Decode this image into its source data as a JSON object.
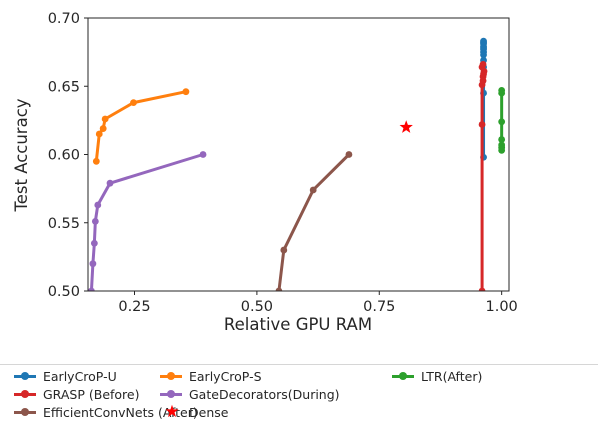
{
  "chart_data": {
    "type": "line",
    "title": "",
    "xlabel": "Relative GPU RAM",
    "ylabel": "Test Accuracy",
    "xlim": [
      0.155,
      1.015
    ],
    "ylim": [
      0.5,
      0.7
    ],
    "xticks": [
      0.25,
      0.5,
      0.75,
      1.0
    ],
    "xtick_labels": [
      "0.25",
      "0.50",
      "0.75",
      "1.00"
    ],
    "yticks": [
      0.5,
      0.55,
      0.6,
      0.65,
      0.7
    ],
    "ytick_labels": [
      "0.50",
      "0.55",
      "0.60",
      "0.65",
      "0.70"
    ],
    "grid": false,
    "legend_position": "below",
    "series": [
      {
        "name": "EarlyCroP-U",
        "color": "#1f77b4",
        "marker": "circle",
        "x": [
          0.963,
          0.963,
          0.963,
          0.963,
          0.963,
          0.963,
          0.963,
          0.963,
          0.963,
          0.963,
          0.963,
          0.963
        ],
        "y": [
          0.598,
          0.645,
          0.664,
          0.669,
          0.673,
          0.675,
          0.677,
          0.678,
          0.679,
          0.681,
          0.682,
          0.683
        ]
      },
      {
        "name": "EarlyCroP-S",
        "color": "#ff7f0e",
        "marker": "circle",
        "x": [
          0.172,
          0.178,
          0.186,
          0.19,
          0.248,
          0.355
        ],
        "y": [
          0.595,
          0.615,
          0.619,
          0.626,
          0.638,
          0.646
        ]
      },
      {
        "name": "LTR(After)",
        "color": "#2ca02c",
        "marker": "circle",
        "x": [
          1.0,
          1.0,
          1.0,
          1.0,
          1.0,
          1.0,
          1.0
        ],
        "y": [
          0.603,
          0.605,
          0.607,
          0.611,
          0.624,
          0.645,
          0.647
        ]
      },
      {
        "name": "GRASP (Before)",
        "color": "#d62728",
        "marker": "circle",
        "x": [
          0.96,
          0.96,
          0.96,
          0.962,
          0.962,
          0.963,
          0.964,
          0.96,
          0.962
        ],
        "y": [
          0.5,
          0.622,
          0.651,
          0.654,
          0.657,
          0.659,
          0.661,
          0.664,
          0.666
        ]
      },
      {
        "name": "GateDecorators(During)",
        "color": "#9467bd",
        "marker": "circle",
        "x": [
          0.162,
          0.165,
          0.168,
          0.17,
          0.175,
          0.2,
          0.39
        ],
        "y": [
          0.5,
          0.52,
          0.535,
          0.551,
          0.563,
          0.579,
          0.6
        ]
      },
      {
        "name": "EfficientConvNets (After)",
        "color": "#8c564b",
        "marker": "circle",
        "x": [
          0.545,
          0.555,
          0.615,
          0.688
        ],
        "y": [
          0.5,
          0.53,
          0.574,
          0.6
        ]
      },
      {
        "name": "Dense",
        "color": "#ff0000",
        "marker": "star",
        "x": [
          0.805
        ],
        "y": [
          0.62
        ]
      }
    ]
  },
  "legend": {
    "items": [
      {
        "label": "EarlyCroP-U",
        "color": "#1f77b4",
        "marker": "line"
      },
      {
        "label": "GRASP (Before)",
        "color": "#d62728",
        "marker": "line"
      },
      {
        "label": "EfficientConvNets (After)",
        "color": "#8c564b",
        "marker": "line"
      },
      {
        "label": "EarlyCroP-S",
        "color": "#ff7f0e",
        "marker": "line"
      },
      {
        "label": "GateDecorators(During)",
        "color": "#9467bd",
        "marker": "line"
      },
      {
        "label": "Dense",
        "color": "#ff0000",
        "marker": "star"
      },
      {
        "label": "LTR(After)",
        "color": "#2ca02c",
        "marker": "line"
      }
    ]
  }
}
